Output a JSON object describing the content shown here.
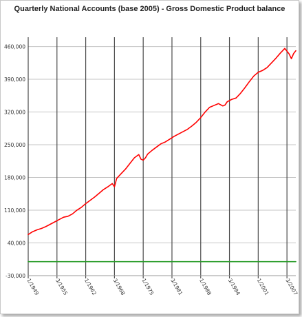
{
  "chart_data": {
    "type": "line",
    "title": "Quarterly National Accounts (base 2005) - Gross Domestic Product balance",
    "xlabel": "",
    "ylabel": "",
    "ylim": [
      -30000,
      480000
    ],
    "yticks": [
      460000,
      390000,
      320000,
      250000,
      180000,
      110000,
      40000,
      -30000
    ],
    "ytick_labels": [
      "460,000",
      "390,000",
      "320,000",
      "250,000",
      "180,000",
      "110,000",
      "40,000",
      "-30,000"
    ],
    "xlim": [
      1949.0,
      2009.5
    ],
    "xticks": [
      1949.0,
      1955.5,
      1962.0,
      1968.5,
      1975.0,
      1981.5,
      1988.0,
      1994.5,
      2001.0,
      2007.5
    ],
    "xtick_labels": [
      "1/1949",
      "3/1955",
      "1/1962",
      "3/1968",
      "1/1975",
      "3/1981",
      "1/1988",
      "3/1994",
      "1/2001",
      "3/2007"
    ],
    "grid": {
      "x": true,
      "y": true
    },
    "legend": "none",
    "series": [
      {
        "color": "#ff0000",
        "x": [
          1949.0,
          1950.0,
          1951.0,
          1952.0,
          1953.0,
          1954.0,
          1955.0,
          1956.0,
          1957.0,
          1958.0,
          1959.0,
          1960.0,
          1961.0,
          1962.0,
          1963.0,
          1964.0,
          1965.0,
          1966.0,
          1967.0,
          1968.0,
          1968.5,
          1969.0,
          1970.0,
          1971.0,
          1972.0,
          1973.0,
          1974.0,
          1974.5,
          1975.0,
          1975.5,
          1976.0,
          1977.0,
          1978.0,
          1979.0,
          1980.0,
          1981.0,
          1982.0,
          1983.0,
          1984.0,
          1985.0,
          1986.0,
          1987.0,
          1988.0,
          1989.0,
          1990.0,
          1991.0,
          1992.0,
          1993.0,
          1993.5,
          1994.0,
          1995.0,
          1996.0,
          1997.0,
          1998.0,
          1999.0,
          2000.0,
          2001.0,
          2002.0,
          2003.0,
          2004.0,
          2005.0,
          2006.0,
          2007.0,
          2008.0,
          2008.5,
          2009.0,
          2009.5
        ],
        "values": [
          58000,
          64000,
          68000,
          71000,
          75000,
          80000,
          85000,
          90000,
          95000,
          97000,
          102000,
          110000,
          116000,
          124000,
          131000,
          138000,
          146000,
          154000,
          160000,
          167000,
          160000,
          178000,
          188000,
          198000,
          210000,
          222000,
          229000,
          219000,
          217000,
          222000,
          230000,
          238000,
          245000,
          252000,
          256000,
          262000,
          268000,
          273000,
          278000,
          283000,
          290000,
          298000,
          308000,
          320000,
          330000,
          334000,
          338000,
          333000,
          335000,
          342000,
          347000,
          350000,
          360000,
          372000,
          385000,
          397000,
          405000,
          409000,
          415000,
          425000,
          435000,
          446000,
          456000,
          444000,
          434000,
          445000,
          451000
        ]
      },
      {
        "color": "#2a9d2a",
        "x": [
          1949.0,
          2009.5
        ],
        "values": [
          0,
          0
        ]
      }
    ]
  }
}
